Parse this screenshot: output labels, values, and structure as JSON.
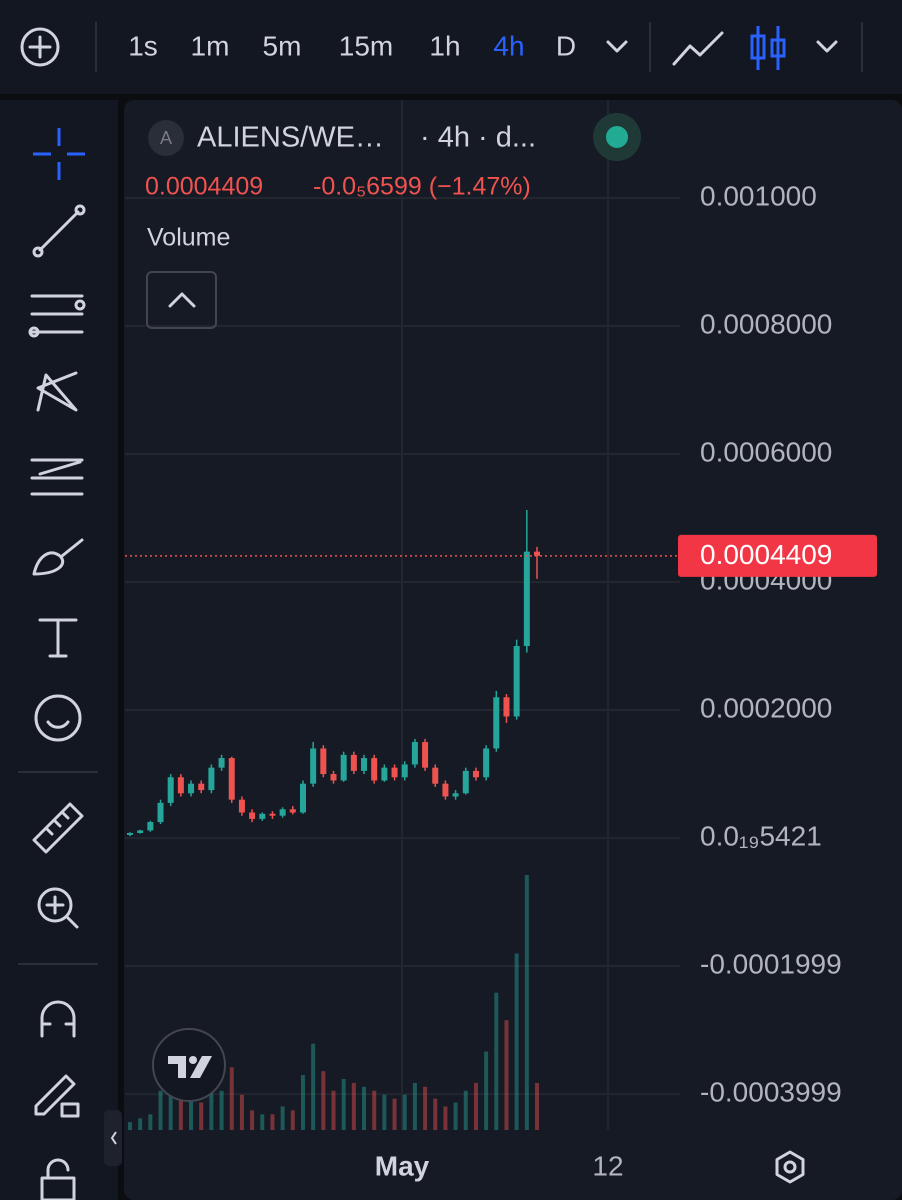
{
  "toolbar": {
    "intervals": [
      "1s",
      "1m",
      "5m",
      "15m",
      "1h",
      "4h",
      "D"
    ],
    "active_interval": 5
  },
  "legend": {
    "badge": "A",
    "symbol": "ALIENS/WE…",
    "interval": "· 4h · d...",
    "price": "0.0004409",
    "change": "-0.0₅6599 (−1.47%)",
    "indicator": "Volume"
  },
  "chart_data": {
    "type": "candlestick",
    "open": [
      5e-06,
      8e-06,
      1.2e-05,
      2.5e-05,
      5.5e-05,
      9.5e-05,
      7e-05,
      8.5e-05,
      7.5e-05,
      0.00011,
      0.000125,
      6e-05,
      4e-05,
      3e-05,
      3.8e-05,
      3.5e-05,
      4.5e-05,
      4e-05,
      8.5e-05,
      0.00014,
      0.0001,
      9e-05,
      0.00013,
      0.000105,
      0.000125,
      9e-05,
      0.00011,
      9.5e-05,
      0.000115,
      0.00015,
      0.00011,
      8.5e-05,
      6.5e-05,
      7e-05,
      0.000105,
      9.5e-05,
      0.00014,
      0.00022,
      0.00019,
      0.0003,
      0.0004475
    ],
    "high": [
      9e-06,
      1.3e-05,
      2.7e-05,
      6e-05,
      0.0001,
      0.0001,
      9e-05,
      9e-05,
      0.000115,
      0.00013,
      0.000127,
      6.5e-05,
      4.5e-05,
      4e-05,
      4.2e-05,
      4.8e-05,
      5e-05,
      9e-05,
      0.00015,
      0.000145,
      0.000105,
      0.000135,
      0.000135,
      0.00013,
      0.00013,
      0.000115,
      0.000115,
      0.00012,
      0.000155,
      0.000155,
      0.000115,
      9e-05,
      7.5e-05,
      0.00011,
      0.00011,
      0.000145,
      0.00023,
      0.000225,
      0.00031,
      0.0005125,
      0.000455
    ],
    "low": [
      3e-06,
      7e-06,
      1e-05,
      2.2e-05,
      5e-05,
      6.5e-05,
      6.5e-05,
      7e-05,
      7e-05,
      0.000105,
      5.5e-05,
      3.5e-05,
      2.5e-05,
      2.7e-05,
      3e-05,
      3.2e-05,
      3.7e-05,
      3.8e-05,
      8e-05,
      9.5e-05,
      8.5e-05,
      8.8e-05,
      0.0001,
      0.0001,
      8.5e-05,
      8.8e-05,
      9e-05,
      9e-05,
      0.00011,
      0.000105,
      8e-05,
      6e-05,
      6e-05,
      6.8e-05,
      9e-05,
      9e-05,
      0.000135,
      0.00018,
      0.000185,
      0.00029,
      0.000405
    ],
    "close": [
      8e-06,
      1.2e-05,
      2.5e-05,
      5.5e-05,
      9.5e-05,
      7e-05,
      8.5e-05,
      7.5e-05,
      0.00011,
      0.000125,
      6e-05,
      4e-05,
      3e-05,
      3.8e-05,
      3.5e-05,
      4.5e-05,
      4e-05,
      8.5e-05,
      0.00014,
      0.0001,
      9e-05,
      0.00013,
      0.000105,
      0.000125,
      9e-05,
      0.00011,
      9.5e-05,
      0.000115,
      0.00015,
      0.00011,
      8.5e-05,
      6.5e-05,
      7e-05,
      0.000105,
      9.5e-05,
      0.00014,
      0.00022,
      0.00019,
      0.0003,
      0.0004475,
      0.0004409
    ],
    "volume": [
      2,
      3,
      4,
      10,
      18,
      12,
      8,
      7,
      14,
      10,
      16,
      9,
      5,
      4,
      4,
      6,
      5,
      14,
      22,
      15,
      10,
      13,
      12,
      11,
      10,
      9,
      8,
      9,
      12,
      11,
      8,
      6,
      7,
      10,
      12,
      20,
      35,
      28,
      45,
      65,
      12
    ],
    "ylim": [
      -0.000456,
      0.001153
    ],
    "yticks": [
      {
        "value": 0.001,
        "label": "0.001000"
      },
      {
        "value": 0.0008,
        "label": "0.0008000"
      },
      {
        "value": 0.0006,
        "label": "0.0006000"
      },
      {
        "value": 0.0004,
        "label": "0.0004000"
      },
      {
        "value": 0.0002,
        "label": "0.0002000"
      },
      {
        "value": 5.421e-20,
        "label": "0.0₁₉5421"
      },
      {
        "value": -0.0001999,
        "label": "-0.0001999"
      },
      {
        "value": -0.0003999,
        "label": "-0.0003999"
      }
    ],
    "x_labels": [
      "May",
      "12"
    ],
    "last_price": {
      "value": 0.0004409,
      "label": "0.0004409"
    },
    "up_color": "#26a69a",
    "down_color": "#ef5350"
  }
}
